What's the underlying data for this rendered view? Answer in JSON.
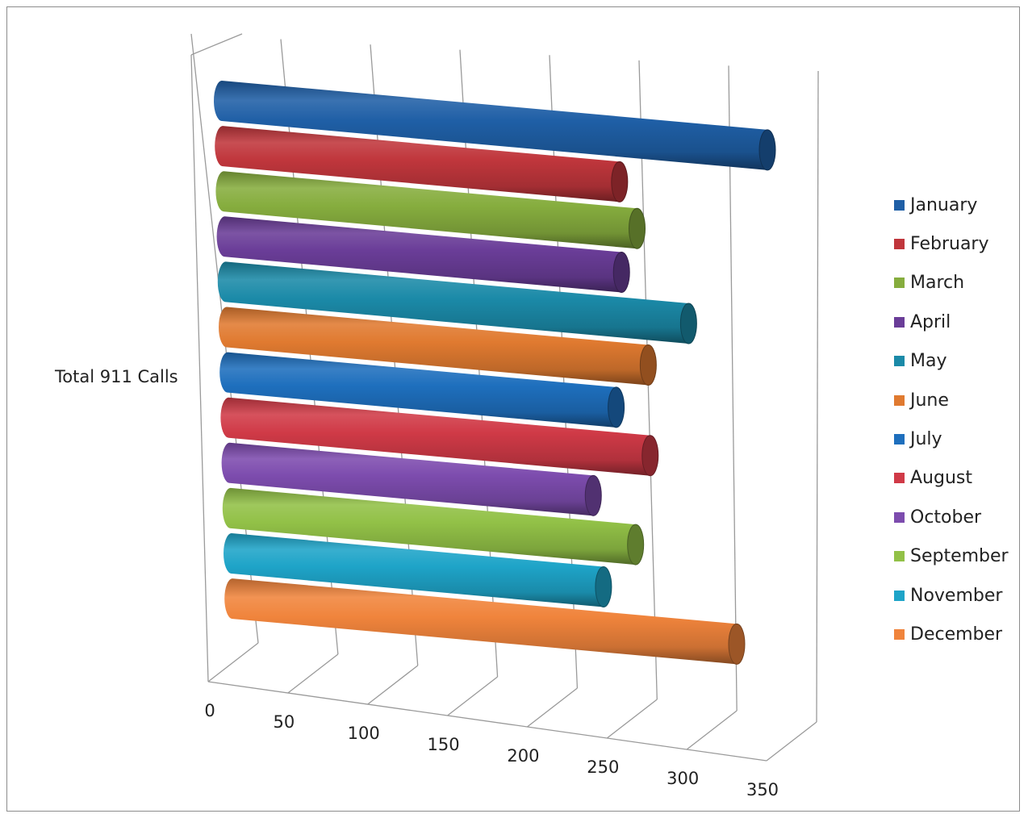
{
  "chart_data": {
    "type": "bar",
    "orientation": "horizontal",
    "style": "3d-cylinder",
    "category_label": "Total 911 Calls",
    "x_ticks": [
      "0",
      "50",
      "100",
      "150",
      "200",
      "250",
      "300",
      "350"
    ],
    "xlim": [
      0,
      350
    ],
    "grid": true,
    "legend_position": "right",
    "series": [
      {
        "name": "January",
        "value": 330,
        "color": "#1f5fa6"
      },
      {
        "name": "February",
        "value": 240,
        "color": "#c0363c"
      },
      {
        "name": "March",
        "value": 250,
        "color": "#86ad3e"
      },
      {
        "name": "April",
        "value": 240,
        "color": "#6a3d98"
      },
      {
        "name": "May",
        "value": 280,
        "color": "#1b8aa8"
      },
      {
        "name": "June",
        "value": 255,
        "color": "#e07a30"
      },
      {
        "name": "July",
        "value": 235,
        "color": "#1e6fbd"
      },
      {
        "name": "August",
        "value": 255,
        "color": "#d03a47"
      },
      {
        "name": "October",
        "value": 220,
        "color": "#7d4cae"
      },
      {
        "name": "September",
        "value": 245,
        "color": "#92c147"
      },
      {
        "name": "November",
        "value": 225,
        "color": "#1ea4c8"
      },
      {
        "name": "December",
        "value": 305,
        "color": "#f0843c"
      }
    ]
  }
}
